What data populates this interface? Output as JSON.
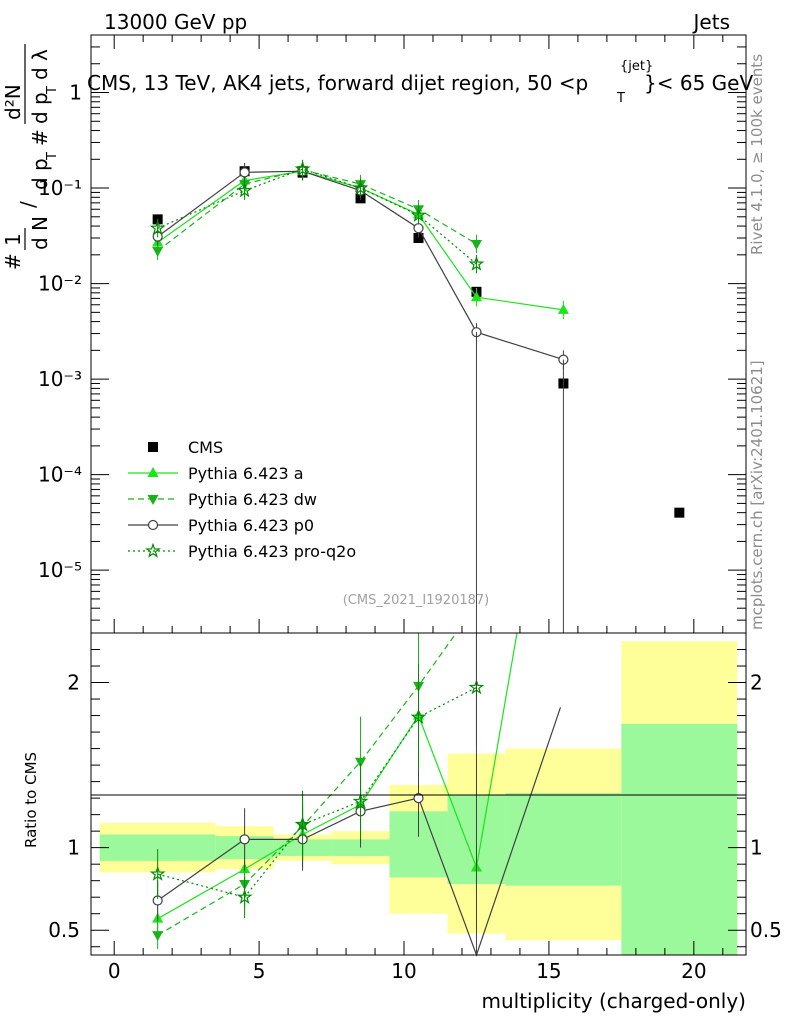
{
  "header": {
    "left": "13000 GeV pp",
    "right": "Jets",
    "title": "CMS, 13 TeV, AK4 jets, forward dijet region, 50 <p",
    "title_sup": "{jet}",
    "title_sub": "T",
    "title_end": "}< 65 GeV"
  },
  "side": {
    "rivet": "Rivet 4.1.0, ≥ 100k events",
    "mcplots": "mcplots.cern.ch [arXiv:2401.10621]"
  },
  "watermark": "(CMS_2021_I1920187)",
  "legend": [
    {
      "label": "CMS",
      "series": "CMS"
    },
    {
      "label": "Pythia 6.423 a",
      "series": "a"
    },
    {
      "label": "Pythia 6.423 dw",
      "series": "dw"
    },
    {
      "label": "Pythia 6.423 p0",
      "series": "p0"
    },
    {
      "label": "Pythia 6.423 pro-q2o",
      "series": "q2o"
    }
  ],
  "chart_data": {
    "type": "scatter",
    "xlabel": "multiplicity (charged-only)",
    "xlim": [
      -0.8,
      21.8
    ],
    "xticks": [
      "0",
      "5",
      "10",
      "15",
      "20"
    ],
    "main": {
      "ylabel": "1/dN d²N/dp_T dλ",
      "yscale": "log",
      "ylim": [
        2.2e-06,
        4
      ],
      "yticks": [
        "10⁻⁵",
        "10⁻⁴",
        "10⁻³",
        "10⁻²",
        "10⁻¹",
        "1"
      ],
      "series": [
        {
          "name": "CMS",
          "x": [
            1.5,
            4.5,
            6.5,
            8.5,
            10.5,
            12.5,
            15.5,
            19.5
          ],
          "y": [
            0.047,
            0.15,
            0.145,
            0.078,
            0.03,
            0.0082,
            0.0009,
            4e-05
          ]
        },
        {
          "name": "Pythia 6.423 a",
          "x": [
            1.5,
            4.5,
            6.5,
            8.5,
            10.5,
            12.5,
            15.5
          ],
          "y": [
            0.027,
            0.12,
            0.15,
            0.1,
            0.053,
            0.0072,
            0.0053
          ]
        },
        {
          "name": "Pythia 6.423 dw",
          "x": [
            1.5,
            4.5,
            6.5,
            8.5,
            10.5,
            12.5
          ],
          "y": [
            0.022,
            0.11,
            0.155,
            0.11,
            0.06,
            0.026
          ]
        },
        {
          "name": "Pythia 6.423 p0",
          "x": [
            1.5,
            4.5,
            6.5,
            8.5,
            10.5,
            12.5,
            15.5
          ],
          "y": [
            0.031,
            0.146,
            0.15,
            0.094,
            0.038,
            0.0031,
            0.0016
          ]
        },
        {
          "name": "Pythia 6.423 pro-q2o",
          "x": [
            1.5,
            4.5,
            6.5,
            8.5,
            10.5,
            12.5
          ],
          "y": [
            0.038,
            0.094,
            0.158,
            0.1,
            0.052,
            0.016
          ]
        }
      ]
    },
    "ratio": {
      "ylabel": "Ratio to CMS",
      "ylim": [
        0.35,
        2.3
      ],
      "yticks": [
        "0.5",
        "1",
        "2"
      ],
      "bands": [
        {
          "x0": -0.5,
          "x1": 3.5,
          "green": [
            0.92,
            1.08
          ],
          "yellow": [
            0.85,
            1.15
          ]
        },
        {
          "x0": 3.5,
          "x1": 5.5,
          "green": [
            0.93,
            1.07
          ],
          "yellow": [
            0.87,
            1.13
          ]
        },
        {
          "x0": 5.5,
          "x1": 7.5,
          "green": [
            0.95,
            1.05
          ],
          "yellow": [
            0.92,
            1.08
          ]
        },
        {
          "x0": 7.5,
          "x1": 9.5,
          "green": [
            0.95,
            1.05
          ],
          "yellow": [
            0.9,
            1.1
          ]
        },
        {
          "x0": 9.5,
          "x1": 11.5,
          "green": [
            0.82,
            1.22
          ],
          "yellow": [
            0.6,
            1.38
          ]
        },
        {
          "x0": 11.5,
          "x1": 13.5,
          "green": [
            0.78,
            1.32
          ],
          "yellow": [
            0.48,
            1.57
          ]
        },
        {
          "x0": 13.5,
          "x1": 17.5,
          "green": [
            0.77,
            1.33
          ],
          "yellow": [
            0.44,
            1.6
          ]
        },
        {
          "x0": 17.5,
          "x1": 21.5,
          "green": [
            0.3,
            1.75
          ],
          "yellow": [
            0.3,
            2.25
          ]
        }
      ],
      "series": [
        {
          "name": "Pythia 6.423 a",
          "x": [
            1.5,
            4.5,
            6.5,
            8.5,
            10.5,
            12.5,
            13.9
          ],
          "y": [
            0.57,
            0.87,
            1.08,
            1.26,
            1.8,
            0.88,
            2.35
          ]
        },
        {
          "name": "Pythia 6.423 dw",
          "x": [
            1.5,
            4.5,
            6.5,
            8.5,
            10.5,
            11.8
          ],
          "y": [
            0.47,
            0.78,
            1.13,
            1.52,
            1.98,
            2.35
          ]
        },
        {
          "name": "Pythia 6.423 p0",
          "x": [
            1.5,
            4.5,
            6.5,
            8.5,
            10.5,
            12.5,
            15.4
          ],
          "y": [
            0.68,
            1.05,
            1.05,
            1.22,
            1.3,
            0.33,
            1.85
          ]
        },
        {
          "name": "Pythia 6.423 pro-q2o",
          "x": [
            1.5,
            4.5,
            6.5,
            8.5,
            10.5,
            12.5
          ],
          "y": [
            0.84,
            0.7,
            1.14,
            1.28,
            1.79,
            1.97
          ]
        }
      ]
    }
  },
  "colors": {
    "a": "#19e619",
    "dw": "#19b219",
    "p0": "#404040",
    "q2o": "#008c00",
    "cms": "#000000",
    "green_band": "#9bf99b",
    "yellow_band": "#ffff99"
  }
}
